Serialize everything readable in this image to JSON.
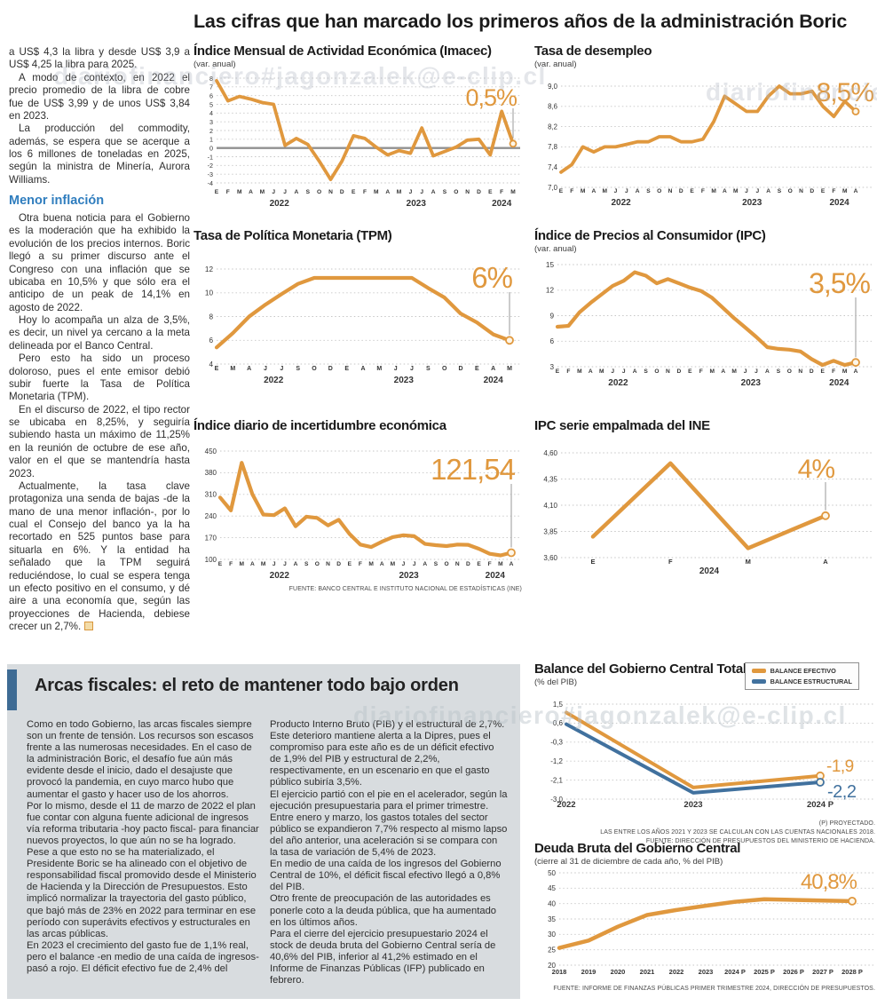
{
  "watermark": {
    "text": "diariofinanciero#jagonzalek@e-clip.cl"
  },
  "headline": "Las cifras que han marcado los primeros años de la administración Boric",
  "colors": {
    "accent_orange": "#E0983E",
    "accent_blue": "#41719E",
    "subhead_blue": "#2F7DBE",
    "panel_background": "#D8DCDF",
    "panel_bar": "#3E6B94"
  },
  "article": {
    "intro_paragraphs": [
      "a US$ 4,3 la libra y desde US$ 3,9 a US$ 4,25 la libra para 2025.",
      "A modo de contexto, en 2022 el precio promedio de la libra de cobre fue de US$ 3,99 y de unos US$ 3,84 en 2023.",
      "La producción del commodity, además, se espera que se acerque a los 6 millones de toneladas en 2025, según la ministra de Minería, Aurora Williams."
    ],
    "subhead": "Menor inflación",
    "body_paragraphs": [
      "Otra buena noticia para el Gobierno es la moderación que ha exhibido la evolución de los precios internos. Boric llegó a su primer discurso ante el Congreso con una inflación que se ubicaba en 10,5% y que sólo era el anticipo de un peak de 14,1% en agosto de 2022.",
      "Hoy lo acompaña un alza de 3,5%, es decir, un nivel ya cercano a la meta delineada por el Banco Central.",
      "Pero esto ha sido un proceso doloroso, pues el ente emisor debió subir fuerte la Tasa de Política Monetaria (TPM).",
      "En el discurso de 2022, el tipo rector se ubicaba en 8,25%, y seguiría subiendo hasta un máximo de 11,25% en la reunión de octubre de ese año, valor en el que se mantendría hasta 2023.",
      "Actualmente, la tasa clave protagoniza una senda de bajas -de la mano de una menor inflación-, por lo cual el Consejo del banco ya la ha recortado en 525 puntos base para situarla en 6%. Y la entidad ha señalado que la TPM seguirá reduciéndose, lo cual se espera tenga un efecto positivo en el consumo, y dé aire a una economía que, según las proyecciones de Hacienda, debiese crecer un 2,7%."
    ]
  },
  "chart_data": [
    {
      "id": "imacec",
      "type": "line",
      "title": "Índice Mensual de Actividad Económica (Imacec)",
      "subtitle": "(var. anual)",
      "big_label": "0,5%",
      "y_min": -4,
      "y_max": 8,
      "y_ticks": [
        {
          "v": 8,
          "label": "8"
        },
        {
          "v": 7,
          "label": "7"
        },
        {
          "v": 6,
          "label": "6"
        },
        {
          "v": 5,
          "label": "5"
        },
        {
          "v": 4,
          "label": "4"
        },
        {
          "v": 3,
          "label": "3"
        },
        {
          "v": 2,
          "label": "2"
        },
        {
          "v": 1,
          "label": "1"
        },
        {
          "v": 0,
          "label": "0"
        },
        {
          "v": -1,
          "label": "-1"
        },
        {
          "v": -2,
          "label": "-2"
        },
        {
          "v": -3,
          "label": "-3"
        },
        {
          "v": -4,
          "label": "-4"
        }
      ],
      "x_labels": [
        "E",
        "F",
        "M",
        "A",
        "M",
        "J",
        "J",
        "A",
        "S",
        "O",
        "N",
        "D",
        "E",
        "F",
        "M",
        "A",
        "M",
        "J",
        "J",
        "A",
        "S",
        "O",
        "N",
        "D",
        "E",
        "F",
        "M"
      ],
      "years": [
        {
          "label": "2022",
          "i": 5.5
        },
        {
          "label": "2023",
          "i": 17.5
        },
        {
          "label": "2024",
          "i": 25
        }
      ],
      "series": [
        {
          "name": "Imacec",
          "color": "#E0983E",
          "values": [
            7.7,
            5.4,
            5.9,
            5.6,
            5.2,
            5.0,
            0.3,
            1.1,
            0.4,
            -1.5,
            -3.6,
            -1.5,
            1.4,
            1.1,
            0.1,
            -0.8,
            -0.3,
            -0.6,
            2.3,
            -0.9,
            -0.4,
            0.1,
            0.9,
            1.0,
            -0.8,
            4.2,
            0.5
          ]
        }
      ]
    },
    {
      "id": "desempleo",
      "type": "line",
      "title": "Tasa de desempleo",
      "subtitle": "(var. anual)",
      "big_label": "8,5%",
      "y_min": 7.0,
      "y_max": 9.0,
      "y_ticks": [
        {
          "v": 9.0,
          "label": "9,0"
        },
        {
          "v": 8.6,
          "label": "8,6"
        },
        {
          "v": 8.2,
          "label": "8,2"
        },
        {
          "v": 7.8,
          "label": "7,8"
        },
        {
          "v": 7.4,
          "label": "7,4"
        },
        {
          "v": 7.0,
          "label": "7,0"
        }
      ],
      "x_labels": [
        "E",
        "F",
        "M",
        "A",
        "M",
        "J",
        "J",
        "A",
        "S",
        "O",
        "N",
        "D",
        "E",
        "F",
        "M",
        "A",
        "M",
        "J",
        "J",
        "A",
        "S",
        "O",
        "N",
        "D",
        "E",
        "F",
        "M",
        "A"
      ],
      "years": [
        {
          "label": "2022",
          "i": 5.5
        },
        {
          "label": "2023",
          "i": 17.5
        },
        {
          "label": "2024",
          "i": 25.5
        }
      ],
      "series": [
        {
          "name": "Tasa de desempleo",
          "color": "#E0983E",
          "values": [
            7.3,
            7.45,
            7.8,
            7.7,
            7.8,
            7.8,
            7.85,
            7.9,
            7.9,
            8.0,
            8.0,
            7.9,
            7.9,
            7.95,
            8.3,
            8.8,
            8.65,
            8.5,
            8.5,
            8.8,
            9.0,
            8.85,
            8.85,
            8.9,
            8.6,
            8.4,
            8.7,
            8.5
          ]
        }
      ]
    },
    {
      "id": "tpm",
      "type": "line",
      "title": "Tasa de Política Monetaria (TPM)",
      "subtitle": "",
      "big_label": "6%",
      "y_min": 4,
      "y_max": 12,
      "y_ticks": [
        {
          "v": 12,
          "label": "12"
        },
        {
          "v": 10,
          "label": "10"
        },
        {
          "v": 8,
          "label": "8"
        },
        {
          "v": 6,
          "label": "6"
        },
        {
          "v": 4,
          "label": "4"
        }
      ],
      "x_labels": [
        "E",
        "M",
        "A",
        "J",
        "J",
        "S",
        "O",
        "D",
        "E",
        "A",
        "M",
        "J",
        "J",
        "S",
        "O",
        "D",
        "E",
        "A",
        "M"
      ],
      "years": [
        {
          "label": "2022",
          "i": 3.5
        },
        {
          "label": "2023",
          "i": 11.5
        },
        {
          "label": "2024",
          "i": 17
        }
      ],
      "series": [
        {
          "name": "TPM",
          "color": "#E0983E",
          "values": [
            5.4,
            6.6,
            8.0,
            9.0,
            9.9,
            10.75,
            11.25,
            11.25,
            11.25,
            11.25,
            11.25,
            11.25,
            11.25,
            10.4,
            9.6,
            8.25,
            7.5,
            6.5,
            6.0
          ]
        }
      ]
    },
    {
      "id": "ipc",
      "type": "line",
      "title": "Índice de Precios al Consumidor (IPC)",
      "subtitle": "(var. anual)",
      "big_label": "3,5%",
      "y_min": 3,
      "y_max": 15,
      "y_ticks": [
        {
          "v": 15,
          "label": "15"
        },
        {
          "v": 12,
          "label": "12"
        },
        {
          "v": 9,
          "label": "9"
        },
        {
          "v": 6,
          "label": "6"
        },
        {
          "v": 3,
          "label": "3"
        }
      ],
      "x_labels": [
        "E",
        "F",
        "M",
        "A",
        "M",
        "J",
        "J",
        "A",
        "S",
        "O",
        "N",
        "D",
        "E",
        "F",
        "M",
        "A",
        "M",
        "J",
        "J",
        "A",
        "S",
        "O",
        "N",
        "D",
        "E",
        "F",
        "M",
        "A"
      ],
      "years": [
        {
          "label": "2022",
          "i": 5.5
        },
        {
          "label": "2023",
          "i": 17.5
        },
        {
          "label": "2024",
          "i": 25.5
        }
      ],
      "series": [
        {
          "name": "IPC",
          "color": "#E0983E",
          "values": [
            7.7,
            7.8,
            9.4,
            10.5,
            11.5,
            12.5,
            13.1,
            14.1,
            13.7,
            12.8,
            13.3,
            12.8,
            12.3,
            11.9,
            11.1,
            9.9,
            8.7,
            7.6,
            6.5,
            5.3,
            5.1,
            5.0,
            4.8,
            3.9,
            3.2,
            3.7,
            3.2,
            3.5
          ]
        }
      ]
    },
    {
      "id": "incertidumbre",
      "type": "line",
      "title": "Índice diario de incertidumbre económica",
      "subtitle": "",
      "big_label": "121,54",
      "y_min": 100,
      "y_max": 450,
      "y_ticks": [
        {
          "v": 450,
          "label": "450"
        },
        {
          "v": 380,
          "label": "380"
        },
        {
          "v": 310,
          "label": "310"
        },
        {
          "v": 240,
          "label": "240"
        },
        {
          "v": 170,
          "label": "170"
        },
        {
          "v": 100,
          "label": "100"
        }
      ],
      "x_labels": [
        "E",
        "F",
        "M",
        "A",
        "M",
        "J",
        "J",
        "A",
        "S",
        "O",
        "N",
        "D",
        "E",
        "F",
        "M",
        "A",
        "M",
        "J",
        "J",
        "A",
        "S",
        "O",
        "N",
        "D",
        "E",
        "F",
        "M",
        "A"
      ],
      "years": [
        {
          "label": "2022",
          "i": 5.5
        },
        {
          "label": "2023",
          "i": 17.5
        },
        {
          "label": "2024",
          "i": 25.5
        }
      ],
      "series": [
        {
          "name": "Incertidumbre económica",
          "color": "#E0983E",
          "values": [
            300,
            258,
            412,
            310,
            245,
            243,
            265,
            207,
            238,
            234,
            210,
            228,
            182,
            148,
            140,
            157,
            172,
            178,
            175,
            150,
            146,
            143,
            148,
            147,
            134,
            118,
            113,
            121.54
          ]
        }
      ],
      "source": "FUENTE: BANCO CENTRAL E INSTITUTO NACIONAL DE ESTADÍSTICAS (INE)"
    },
    {
      "id": "empalmada",
      "type": "line",
      "title": "IPC serie empalmada del INE",
      "subtitle": "",
      "big_label": "4%",
      "y_min": 3.6,
      "y_max": 4.6,
      "y_ticks": [
        {
          "v": 4.6,
          "label": "4,60"
        },
        {
          "v": 4.35,
          "label": "4,35"
        },
        {
          "v": 4.1,
          "label": "4,10"
        },
        {
          "v": 3.85,
          "label": "3,85"
        },
        {
          "v": 3.6,
          "label": "3,60"
        }
      ],
      "x_labels": [
        "E",
        "F",
        "M",
        "A"
      ],
      "years": [
        {
          "label": "2024",
          "i": 1.5
        }
      ],
      "series": [
        {
          "name": "IPC serie empalmada",
          "color": "#E0983E",
          "values": [
            3.8,
            4.5,
            3.69,
            4.0
          ]
        }
      ]
    },
    {
      "id": "balance",
      "type": "line",
      "title": "Balance del Gobierno Central Total",
      "subtitle": "(% del PIB)",
      "big_label": "",
      "y_min": -3.0,
      "y_max": 1.5,
      "y_ticks": [
        {
          "v": 1.5,
          "label": "1,5"
        },
        {
          "v": 0.6,
          "label": "0,6"
        },
        {
          "v": -0.3,
          "label": "-0,3"
        },
        {
          "v": -1.2,
          "label": "-1,2"
        },
        {
          "v": -2.1,
          "label": "-2,1"
        },
        {
          "v": -3.0,
          "label": "-3,0"
        }
      ],
      "x_labels": [
        "2022",
        "2023",
        "2024 P"
      ],
      "years": [],
      "series": [
        {
          "name": "BALANCE EFECTIVO",
          "color": "#E0983E",
          "values": [
            1.1,
            -2.45,
            -1.9
          ],
          "end_label": "-1,9"
        },
        {
          "name": "BALANCE ESTRUCTURAL",
          "color": "#41719E",
          "values": [
            0.55,
            -2.7,
            -2.2
          ],
          "end_label": "-2,2"
        }
      ],
      "notes": [
        "(P) PROYECTADO.",
        "LAS ENTRE LOS AÑOS 2021 Y 2023 SE CALCULAN  CON LAS CUENTAS NACIONALES 2018.",
        "FUENTE: DIRECCIÓN DE PRESUPUESTOS DEL MINISTERIO DE HACIENDA."
      ]
    },
    {
      "id": "deuda",
      "type": "line",
      "title": "Deuda Bruta del Gobierno Central",
      "subtitle": "(cierre al 31 de diciembre de cada año, % del PIB)",
      "big_label": "40,8%",
      "y_min": 20,
      "y_max": 50,
      "y_ticks": [
        {
          "v": 50,
          "label": "50"
        },
        {
          "v": 45,
          "label": "45"
        },
        {
          "v": 40,
          "label": "40"
        },
        {
          "v": 35,
          "label": "35"
        },
        {
          "v": 30,
          "label": "30"
        },
        {
          "v": 25,
          "label": "25"
        },
        {
          "v": 20,
          "label": "20"
        }
      ],
      "x_labels": [
        "2018",
        "2019",
        "2020",
        "2021",
        "2022",
        "2023",
        "2024 P",
        "2025 P",
        "2026 P",
        "2027 P",
        "2028 P"
      ],
      "years": [],
      "series": [
        {
          "name": "Deuda bruta",
          "color": "#E0983E",
          "values": [
            25.6,
            28.0,
            32.5,
            36.3,
            37.9,
            39.3,
            40.6,
            41.4,
            41.2,
            41.0,
            40.8
          ]
        }
      ],
      "source": "FUENTE: INFORME DE FINANZAS PÚBLICAS PRIMER TRIMESTRE 2024, DIRECCIÓN DE PRESUPUESTOS."
    }
  ],
  "fiscal": {
    "title": "Arcas fiscales: el reto de mantener todo bajo orden",
    "col1": [
      "Como en todo Gobierno, las arcas fiscales siempre son un frente de tensión. Los recursos son escasos frente a las numerosas necesidades. En el caso de la administración Boric, el desafío fue aún más evidente desde el inicio, dado el desajuste que provocó la pandemia, en cuyo marco hubo que aumentar el gasto y hacer uso de los ahorros.",
      "Por lo mismo, desde el 11 de marzo de 2022 el plan fue contar con alguna fuente adicional de ingresos vía reforma tributaria -hoy pacto fiscal- para financiar nuevos proyectos, lo que aún no se ha logrado.",
      "Pese a que esto no se ha materializado, el Presidente Boric se ha alineado con el objetivo de responsabilidad fiscal promovido desde el Ministerio de Hacienda y la Dirección de Presupuestos. Esto implicó normalizar la trayectoria del gasto público, que bajó más de 23% en 2022 para terminar en ese período con superávits efectivos y estructurales en las arcas públicas.",
      "En 2023 el crecimiento del gasto fue de 1,1% real, pero el balance -en medio de una caída de ingresos-  pasó a rojo. El déficit efectivo fue de 2,4% del"
    ],
    "col2": [
      "Producto Interno Bruto (PIB) y el estructural de 2,7%. Este deterioro mantiene alerta a la Dipres, pues el compromiso para este año es de un déficit efectivo de 1,9% del PIB y estructural de 2,2%, respectivamente, en un escenario en que el gasto público subiría 3,5%.",
      "El ejercicio partió con el pie en el acelerador, según la ejecución presupuestaria para el primer trimestre. Entre enero y marzo, los gastos totales del sector público se expandieron 7,7% respecto al mismo lapso del año anterior, una aceleración si se compara con la tasa de variación de 5,4% de 2023.",
      "En medio de una caída de los ingresos del Gobierno Central de 10%, el déficit fiscal efectivo llegó a 0,8% del PIB.",
      "Otro frente de preocupación de las autoridades es ponerle coto a la deuda pública, que ha aumentado en los últimos años.",
      "Para el cierre del ejercicio presupuestario 2024 el stock de deuda bruta del Gobierno Central sería de 40,6% del PIB, inferior al 41,2% estimado en el Informe de Finanzas Públicas (IFP) publicado en febrero."
    ]
  }
}
